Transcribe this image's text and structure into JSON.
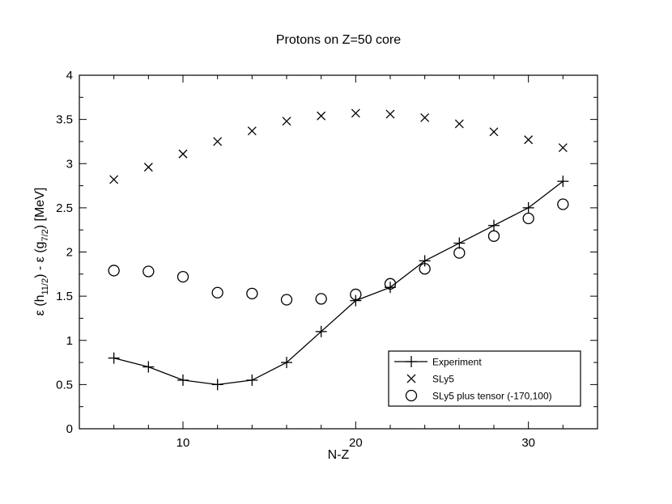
{
  "chart_data": {
    "type": "scatter",
    "title": "Protons on Z=50 core",
    "xlabel": "N-Z",
    "ylabel": {
      "prefix": "ε (h",
      "sub1": "11/2",
      "middle": ") - ε (g",
      "sub2": "7/2",
      "suffix": ")  [MeV]"
    },
    "xlim": [
      4,
      34
    ],
    "ylim": [
      0,
      4
    ],
    "xticks": [
      10,
      20,
      30
    ],
    "xminor_step": 2,
    "yticks": [
      0,
      0.5,
      1,
      1.5,
      2,
      2.5,
      3,
      3.5,
      4
    ],
    "yminor_step": 0.25,
    "grid": false,
    "legend_position": "bottom-right",
    "series": [
      {
        "name": "Experiment",
        "style": "plus-line",
        "color": "#000000",
        "x": [
          6,
          8,
          10,
          12,
          14,
          16,
          18,
          20,
          22,
          24,
          26,
          28,
          30,
          32
        ],
        "y": [
          0.8,
          0.7,
          0.55,
          0.5,
          0.55,
          0.75,
          1.1,
          1.45,
          1.6,
          1.9,
          2.1,
          2.3,
          2.5,
          2.8
        ]
      },
      {
        "name": "SLy5",
        "style": "cross",
        "color": "#000000",
        "x": [
          6,
          8,
          10,
          12,
          14,
          16,
          18,
          20,
          22,
          24,
          26,
          28,
          30,
          32
        ],
        "y": [
          2.82,
          2.96,
          3.11,
          3.25,
          3.37,
          3.48,
          3.54,
          3.57,
          3.56,
          3.52,
          3.45,
          3.36,
          3.27,
          3.18
        ]
      },
      {
        "name": "SLy5 plus tensor (-170,100)",
        "style": "circle",
        "color": "#000000",
        "x": [
          6,
          8,
          10,
          12,
          14,
          16,
          18,
          20,
          22,
          24,
          26,
          28,
          30,
          32
        ],
        "y": [
          1.79,
          1.78,
          1.72,
          1.54,
          1.53,
          1.46,
          1.47,
          1.52,
          1.64,
          1.81,
          1.99,
          2.18,
          2.38,
          2.54
        ]
      }
    ]
  }
}
